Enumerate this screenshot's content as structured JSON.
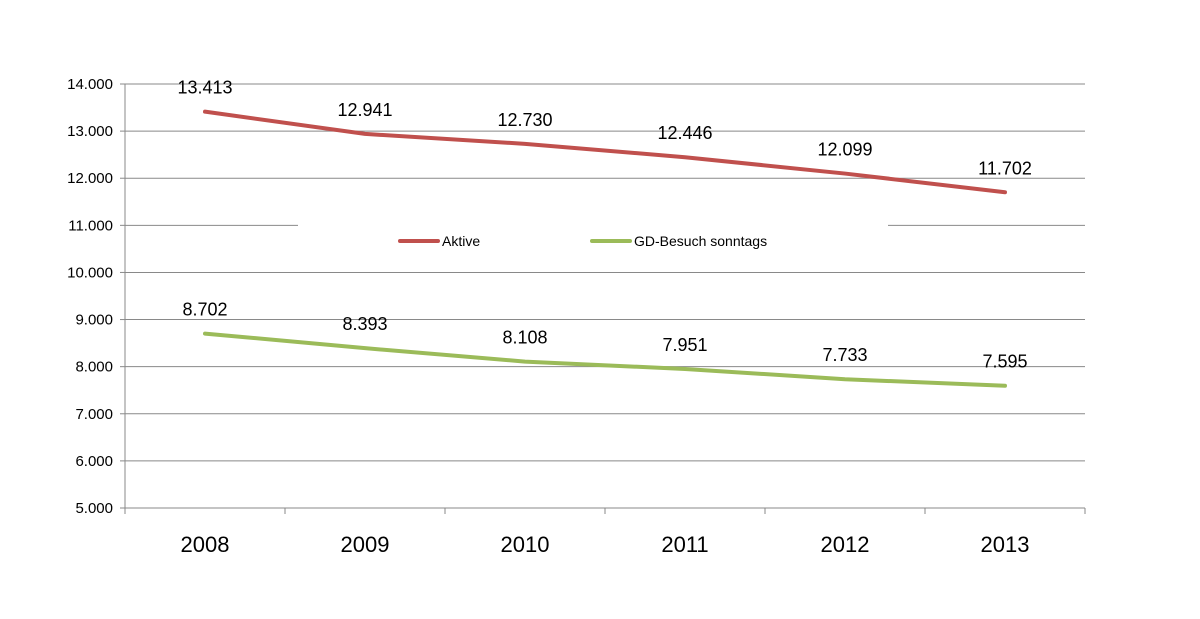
{
  "chart_data": {
    "type": "line",
    "title": "",
    "xlabel": "",
    "ylabel": "",
    "x": [
      "2008",
      "2009",
      "2010",
      "2011",
      "2012",
      "2013"
    ],
    "ylim": [
      5000,
      14000
    ],
    "y_ticks": [
      5000,
      6000,
      7000,
      8000,
      9000,
      10000,
      11000,
      12000,
      13000,
      14000
    ],
    "y_tick_labels": [
      "5.000",
      "6.000",
      "7.000",
      "8.000",
      "9.000",
      "10.000",
      "11.000",
      "12.000",
      "13.000",
      "14.000"
    ],
    "grid": true,
    "legend_position": "inside-top-center",
    "series": [
      {
        "name": "Aktive",
        "color": "#c0504d",
        "values": [
          13413,
          12941,
          12730,
          12446,
          12099,
          11702
        ],
        "labels": [
          "13.413",
          "12.941",
          "12.730",
          "12.446",
          "12.099",
          "11.702"
        ]
      },
      {
        "name": "GD-Besuch sonntags",
        "color": "#9bbb59",
        "values": [
          8702,
          8393,
          8108,
          7951,
          7733,
          7595
        ],
        "labels": [
          "8.702",
          "8.393",
          "8.108",
          "7.951",
          "7.733",
          "7.595"
        ]
      }
    ]
  }
}
